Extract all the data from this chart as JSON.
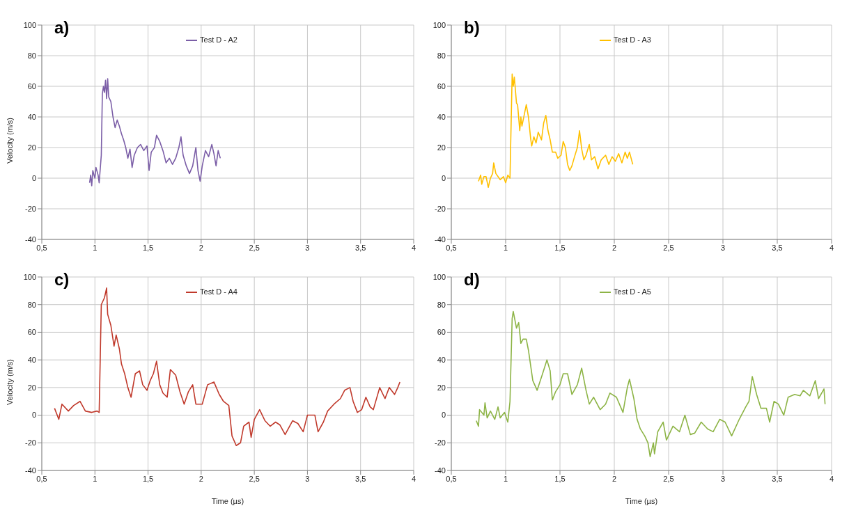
{
  "chart_data": [
    {
      "type": "line",
      "title": "a)",
      "ylabel": "Velocity (m/s)",
      "legend": "top",
      "grid": true,
      "xlim": [
        0.5,
        4
      ],
      "xticks": [
        {
          "value": 0.5,
          "label": "0,5"
        },
        1,
        {
          "value": 1.5,
          "label": "1,5"
        },
        2,
        {
          "value": 2.5,
          "label": "2,5"
        },
        3,
        {
          "value": 3.5,
          "label": "3,5"
        },
        4
      ],
      "ylim": [
        -40,
        100
      ],
      "yticks": [
        -40,
        -20,
        0,
        20,
        40,
        60,
        80,
        100
      ],
      "x": [
        0.95,
        0.96,
        0.97,
        0.98,
        1.0,
        1.01,
        1.03,
        1.04,
        1.06,
        1.07,
        1.08,
        1.09,
        1.1,
        1.11,
        1.12,
        1.13,
        1.15,
        1.17,
        1.19,
        1.21,
        1.23,
        1.25,
        1.27,
        1.29,
        1.31,
        1.33,
        1.35,
        1.37,
        1.4,
        1.43,
        1.46,
        1.49,
        1.51,
        1.53,
        1.56,
        1.58,
        1.61,
        1.64,
        1.67,
        1.7,
        1.73,
        1.76,
        1.79,
        1.81,
        1.83,
        1.86,
        1.89,
        1.92,
        1.95,
        1.97,
        1.99,
        2.01,
        2.04,
        2.07,
        2.1,
        2.12,
        2.14,
        2.16,
        2.18
      ],
      "series": [
        {
          "name": "Test D - A2",
          "color": "#7b5ea7",
          "values": [
            -3,
            2,
            -5,
            5,
            0,
            7,
            2,
            -3,
            15,
            55,
            60,
            56,
            64,
            52,
            65,
            53,
            50,
            40,
            33,
            38,
            34,
            29,
            25,
            20,
            13,
            19,
            7,
            15,
            20,
            22,
            18,
            21,
            5,
            17,
            20,
            28,
            24,
            18,
            10,
            13,
            9,
            13,
            20,
            27,
            15,
            8,
            3,
            8,
            20,
            5,
            -2,
            8,
            18,
            14,
            22,
            16,
            8,
            18,
            13
          ]
        }
      ]
    },
    {
      "type": "line",
      "title": "b)",
      "legend": "top",
      "grid": true,
      "xlim": [
        0.5,
        4
      ],
      "xticks": [
        {
          "value": 0.5,
          "label": "0,5"
        },
        1,
        {
          "value": 1.5,
          "label": "1,5"
        },
        2,
        {
          "value": 2.5,
          "label": "2,5"
        },
        3,
        {
          "value": 3.5,
          "label": "3,5"
        },
        4
      ],
      "ylim": [
        -40,
        100
      ],
      "yticks": [
        -40,
        -20,
        0,
        20,
        40,
        60,
        80,
        100
      ],
      "x": [
        0.75,
        0.77,
        0.78,
        0.8,
        0.82,
        0.84,
        0.86,
        0.88,
        0.89,
        0.91,
        0.93,
        0.95,
        0.98,
        1.0,
        1.02,
        1.04,
        1.06,
        1.07,
        1.08,
        1.1,
        1.11,
        1.13,
        1.14,
        1.15,
        1.17,
        1.19,
        1.21,
        1.23,
        1.24,
        1.26,
        1.28,
        1.3,
        1.33,
        1.35,
        1.37,
        1.39,
        1.41,
        1.43,
        1.46,
        1.48,
        1.51,
        1.53,
        1.55,
        1.57,
        1.59,
        1.61,
        1.63,
        1.66,
        1.68,
        1.7,
        1.72,
        1.74,
        1.77,
        1.79,
        1.82,
        1.85,
        1.88,
        1.92,
        1.95,
        1.98,
        2.01,
        2.04,
        2.07,
        2.1,
        2.12,
        2.14,
        2.17
      ],
      "series": [
        {
          "name": "Test D - A3",
          "color": "#ffc000",
          "values": [
            -2,
            2,
            -4,
            1,
            1,
            -6,
            0,
            3,
            10,
            3,
            1,
            -1,
            1,
            -3,
            2,
            0,
            68,
            60,
            66,
            49,
            48,
            31,
            40,
            34,
            41,
            48,
            40,
            26,
            21,
            27,
            23,
            30,
            25,
            36,
            41,
            31,
            25,
            17,
            17,
            13,
            15,
            24,
            20,
            9,
            5,
            8,
            13,
            20,
            31,
            19,
            12,
            15,
            22,
            12,
            14,
            6,
            12,
            15,
            9,
            14,
            11,
            16,
            10,
            17,
            13,
            17,
            9
          ]
        }
      ]
    },
    {
      "type": "line",
      "title": "c)",
      "xlabel": "Time (µs)",
      "ylabel": "Velocity (m/s)",
      "legend": "top",
      "grid": true,
      "xlim": [
        0.5,
        4
      ],
      "xticks": [
        {
          "value": 0.5,
          "label": "0,5"
        },
        1,
        {
          "value": 1.5,
          "label": "1,5"
        },
        2,
        {
          "value": 2.5,
          "label": "2,5"
        },
        3,
        {
          "value": 3.5,
          "label": "3,5"
        },
        4
      ],
      "ylim": [
        -40,
        100
      ],
      "yticks": [
        -40,
        -20,
        0,
        20,
        40,
        60,
        80,
        100
      ],
      "x": [
        0.62,
        0.66,
        0.69,
        0.75,
        0.8,
        0.86,
        0.91,
        0.97,
        1.02,
        1.04,
        1.06,
        1.09,
        1.11,
        1.12,
        1.15,
        1.18,
        1.2,
        1.23,
        1.25,
        1.28,
        1.31,
        1.34,
        1.38,
        1.42,
        1.45,
        1.49,
        1.52,
        1.55,
        1.58,
        1.61,
        1.64,
        1.68,
        1.71,
        1.76,
        1.8,
        1.84,
        1.88,
        1.92,
        1.95,
        2.01,
        2.06,
        2.12,
        2.17,
        2.21,
        2.26,
        2.29,
        2.33,
        2.37,
        2.4,
        2.45,
        2.47,
        2.5,
        2.55,
        2.6,
        2.65,
        2.7,
        2.74,
        2.79,
        2.86,
        2.91,
        2.96,
        3.0,
        3.07,
        3.1,
        3.15,
        3.19,
        3.25,
        3.31,
        3.35,
        3.4,
        3.43,
        3.47,
        3.51,
        3.55,
        3.59,
        3.62,
        3.68,
        3.73,
        3.77,
        3.82,
        3.85,
        3.87
      ],
      "series": [
        {
          "name": "Test D - A4",
          "color": "#c0392b",
          "values": [
            5,
            -3,
            8,
            3,
            7,
            10,
            3,
            2,
            3,
            2,
            80,
            85,
            92,
            73,
            65,
            50,
            58,
            48,
            37,
            30,
            20,
            13,
            30,
            32,
            22,
            18,
            25,
            30,
            39,
            22,
            16,
            13,
            33,
            29,
            17,
            8,
            17,
            22,
            8,
            8,
            22,
            24,
            15,
            10,
            7,
            -15,
            -22,
            -20,
            -8,
            -5,
            -16,
            -3,
            4,
            -4,
            -8,
            -5,
            -7,
            -14,
            -4,
            -6,
            -12,
            0,
            0,
            -12,
            -5,
            3,
            8,
            12,
            18,
            20,
            10,
            2,
            4,
            13,
            6,
            4,
            20,
            12,
            20,
            15,
            20,
            24
          ]
        }
      ]
    },
    {
      "type": "line",
      "title": "d)",
      "xlabel": "Time (µs)",
      "legend": "top",
      "grid": true,
      "xlim": [
        0.5,
        4
      ],
      "xticks": [
        {
          "value": 0.5,
          "label": "0,5"
        },
        1,
        {
          "value": 1.5,
          "label": "1,5"
        },
        2,
        {
          "value": 2.5,
          "label": "2,5"
        },
        3,
        {
          "value": 3.5,
          "label": "3,5"
        },
        4
      ],
      "ylim": [
        -40,
        100
      ],
      "yticks": [
        -40,
        -20,
        0,
        20,
        40,
        60,
        80,
        100
      ],
      "x": [
        0.73,
        0.75,
        0.76,
        0.8,
        0.81,
        0.83,
        0.86,
        0.9,
        0.93,
        0.95,
        0.99,
        1.02,
        1.04,
        1.06,
        1.07,
        1.1,
        1.12,
        1.14,
        1.16,
        1.19,
        1.21,
        1.25,
        1.29,
        1.34,
        1.38,
        1.41,
        1.43,
        1.46,
        1.5,
        1.53,
        1.57,
        1.61,
        1.66,
        1.7,
        1.74,
        1.77,
        1.81,
        1.87,
        1.92,
        1.96,
        2.02,
        2.08,
        2.12,
        2.14,
        2.18,
        2.21,
        2.24,
        2.28,
        2.31,
        2.33,
        2.36,
        2.37,
        2.4,
        2.45,
        2.48,
        2.54,
        2.6,
        2.65,
        2.7,
        2.74,
        2.8,
        2.86,
        2.91,
        2.97,
        3.02,
        3.08,
        3.15,
        3.21,
        3.24,
        3.27,
        3.31,
        3.35,
        3.4,
        3.43,
        3.47,
        3.51,
        3.56,
        3.6,
        3.66,
        3.71,
        3.74,
        3.8,
        3.85,
        3.88,
        3.93,
        3.94
      ],
      "series": [
        {
          "name": "Test D - A5",
          "color": "#8db446",
          "values": [
            -4,
            -8,
            4,
            0,
            9,
            -2,
            3,
            -3,
            6,
            -2,
            2,
            -5,
            10,
            70,
            75,
            63,
            67,
            52,
            55,
            55,
            47,
            25,
            18,
            30,
            40,
            32,
            11,
            17,
            22,
            30,
            30,
            15,
            22,
            34,
            18,
            8,
            13,
            4,
            8,
            16,
            13,
            2,
            20,
            26,
            12,
            -3,
            -10,
            -15,
            -20,
            -30,
            -20,
            -28,
            -12,
            -5,
            -18,
            -8,
            -12,
            0,
            -14,
            -13,
            -5,
            -10,
            -12,
            -3,
            -5,
            -15,
            -3,
            6,
            10,
            28,
            15,
            5,
            5,
            -5,
            10,
            8,
            0,
            13,
            15,
            14,
            18,
            14,
            25,
            12,
            19,
            8
          ]
        }
      ]
    }
  ]
}
